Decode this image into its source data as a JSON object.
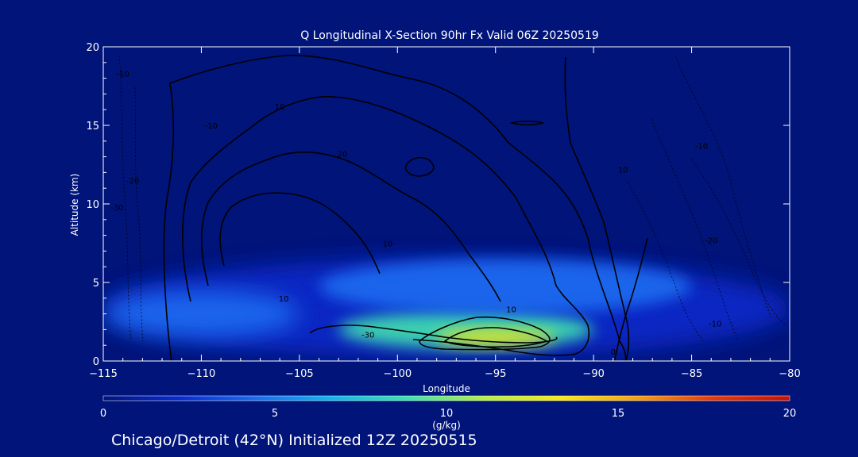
{
  "chart_data": {
    "type": "heatmap",
    "title": "Q Longitudinal X-Section 90hr  Fx Valid 06Z 20250519",
    "xlabel": "Longitude",
    "ylabel": "Altitude (km)",
    "xlim": [
      -115,
      -80
    ],
    "ylim": [
      0,
      20
    ],
    "x_ticks": [
      -115,
      -110,
      -105,
      -100,
      -95,
      -90,
      -85,
      -80
    ],
    "x_tick_labels": [
      "−115",
      "−110",
      "−105",
      "−100",
      "−95",
      "−90",
      "−85",
      "−80"
    ],
    "y_ticks": [
      0,
      5,
      10,
      15,
      20
    ],
    "y_tick_labels": [
      "0",
      "5",
      "10",
      "15",
      "20"
    ],
    "colorbar": {
      "label": "(g/kg)",
      "range": [
        0,
        20
      ],
      "ticks": [
        "0",
        "5",
        "10",
        "15",
        "20"
      ],
      "stops": [
        "#00147a",
        "#0a2bd0",
        "#1a6cf0",
        "#14b4ea",
        "#40e0b0",
        "#b4ee48",
        "#f6e814",
        "#f5a012",
        "#e53a0c",
        "#c41208"
      ]
    },
    "moisture_blobs": [
      {
        "name": "low-level moist layer",
        "lon": [
          -115,
          -80
        ],
        "alt": [
          0.2,
          6.5
        ],
        "q": 3
      },
      {
        "name": "western shallow layer",
        "lon": [
          -115,
          -105
        ],
        "alt": [
          1.5,
          4.5
        ],
        "q": 5
      },
      {
        "name": "central moist core",
        "lon": [
          -103,
          -90
        ],
        "alt": [
          0.8,
          3.2
        ],
        "q": 9
      },
      {
        "name": "maximum core",
        "lon": [
          -98,
          -92
        ],
        "alt": [
          1.0,
          2.0
        ],
        "q": 13
      },
      {
        "name": "upper moist tongue",
        "lon": [
          -104,
          -85
        ],
        "alt": [
          3.0,
          6.5
        ],
        "q": 4
      }
    ],
    "contour_labels": [
      {
        "text": "-10",
        "lon": -114,
        "alt": 18.1
      },
      {
        "text": "-10",
        "lon": -109.5,
        "alt": 14.8
      },
      {
        "text": "10",
        "lon": -106,
        "alt": 16.0
      },
      {
        "text": "20",
        "lon": -102.8,
        "alt": 13.0
      },
      {
        "text": "10",
        "lon": -88.5,
        "alt": 12.0
      },
      {
        "text": "10",
        "lon": -100.5,
        "alt": 7.3
      },
      {
        "text": "10",
        "lon": -105.8,
        "alt": 3.8
      },
      {
        "text": "10",
        "lon": -94.2,
        "alt": 3.1
      },
      {
        "text": "0",
        "lon": -89,
        "alt": 0.4
      },
      {
        "text": "-20",
        "lon": -113.5,
        "alt": 11.3
      },
      {
        "text": "-30",
        "lon": -114.3,
        "alt": 9.6
      },
      {
        "text": "-10",
        "lon": -84.5,
        "alt": 13.5
      },
      {
        "text": "-20",
        "lon": -84,
        "alt": 7.5
      },
      {
        "text": "-10",
        "lon": -83.8,
        "alt": 2.2
      },
      {
        "text": "-30",
        "lon": -101.5,
        "alt": 1.5
      }
    ],
    "footer": "Chicago/Detroit (42°N) Initialized 12Z 20250515"
  }
}
